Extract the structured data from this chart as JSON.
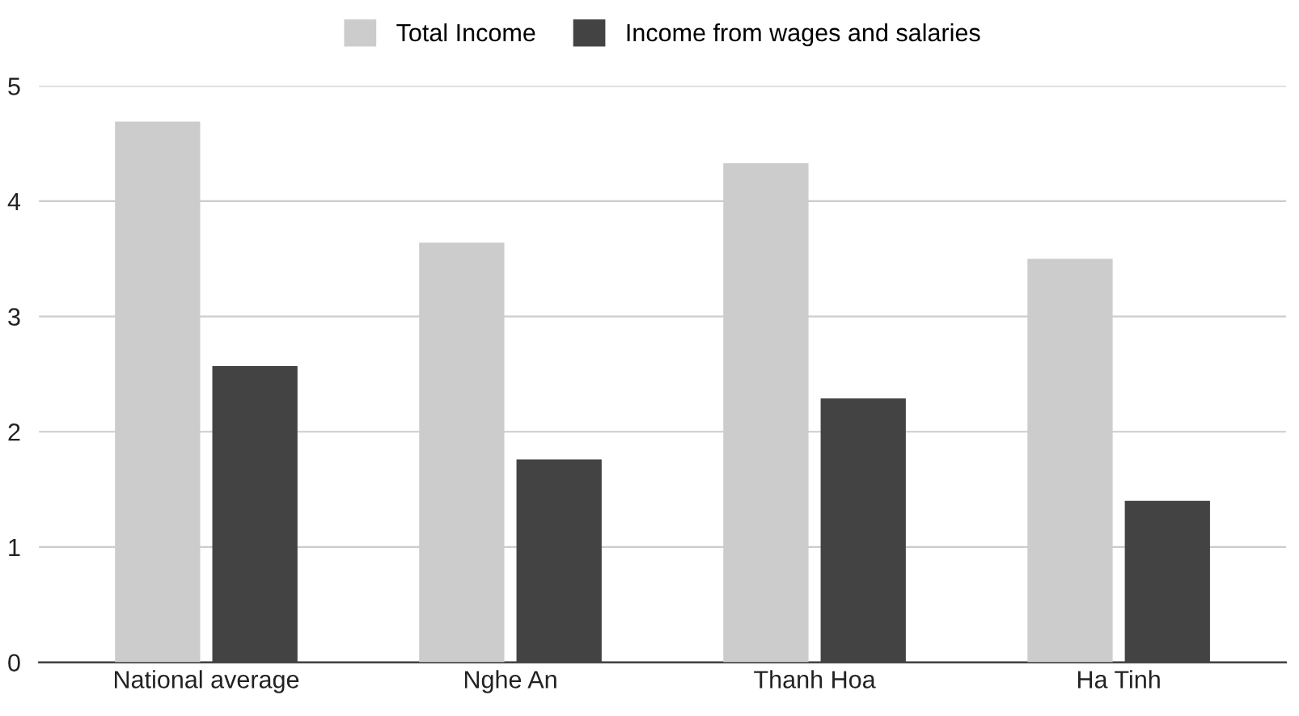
{
  "chart_data": {
    "type": "bar",
    "categories": [
      "National average",
      "Nghe An",
      "Thanh Hoa",
      "Ha Tinh"
    ],
    "series": [
      {
        "name": "Total Income",
        "color": "#cccccc",
        "values": [
          4.69,
          3.64,
          4.33,
          3.5
        ]
      },
      {
        "name": "Income from wages and salaries",
        "color": "#434343",
        "values": [
          2.57,
          1.76,
          2.29,
          1.4
        ]
      }
    ],
    "ylim": [
      0,
      5
    ],
    "yticks": [
      0,
      1,
      2,
      3,
      4,
      5
    ],
    "grid": "y",
    "legend": "top"
  }
}
